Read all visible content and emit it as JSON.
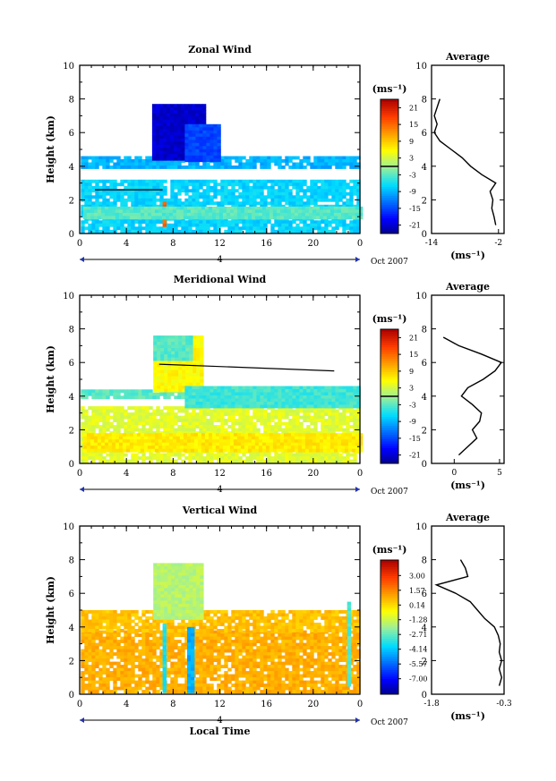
{
  "chart_data": [
    {
      "type": "heatmap",
      "title": "Zonal Wind",
      "ylabel": "Height (km)",
      "xlabel": "",
      "xlim": [
        0,
        24
      ],
      "ylim": [
        0,
        10
      ],
      "x_ticks": [
        "0",
        "4",
        "8",
        "12",
        "16",
        "20",
        "0"
      ],
      "y_ticks": [
        "0",
        "2",
        "4",
        "6",
        "8",
        "10"
      ],
      "date_label": "Oct 2007",
      "day_label": "4",
      "colorbar": {
        "unit": "(ms⁻¹)",
        "min": -24,
        "max": 24,
        "ticks": [
          "21",
          "15",
          "9",
          "3",
          "-3",
          "-9",
          "-15",
          "-21"
        ],
        "tick_values": [
          21,
          15,
          9,
          3,
          -3,
          -9,
          -15,
          -21
        ]
      },
      "regions": [
        {
          "t0": 0.1,
          "t1": 24,
          "h0": 0.1,
          "h1": 3.2,
          "value": -7
        },
        {
          "t0": 0.1,
          "t1": 24,
          "h0": 3.9,
          "h1": 4.6,
          "value": -9
        },
        {
          "t0": 6.2,
          "t1": 10.5,
          "h0": 4.5,
          "h1": 7.7,
          "value": -21
        },
        {
          "t0": 9.0,
          "t1": 12.0,
          "h0": 4.4,
          "h1": 6.5,
          "value": -15
        },
        {
          "t0": 7.1,
          "t1": 7.4,
          "h0": 0.5,
          "h1": 1.9,
          "value": 15
        },
        {
          "t0": 0.3,
          "t1": 24,
          "h0": 1.0,
          "h1": 1.6,
          "value": -3
        }
      ],
      "contour_lines": [
        {
          "t": [
            1.3,
            7.1
          ],
          "h": [
            2.6,
            2.6
          ]
        }
      ],
      "profile": {
        "title": "Average",
        "xlabel": "(ms⁻¹)",
        "x_ticks": [
          "-14",
          "-2"
        ],
        "xlim": [
          -14,
          -1
        ],
        "height": [
          0.5,
          1.0,
          1.5,
          2.0,
          2.5,
          3.0,
          3.5,
          4.0,
          4.5,
          5.0,
          5.5,
          6.0,
          6.5,
          7.0,
          7.5,
          8.0
        ],
        "value": [
          -2.5,
          -2.8,
          -3.2,
          -3.0,
          -3.5,
          -2.5,
          -5.0,
          -7.0,
          -8.5,
          -10.5,
          -12.5,
          -13.5,
          -13.0,
          -13.5,
          -13.0,
          -12.5
        ]
      }
    },
    {
      "type": "heatmap",
      "title": "Meridional Wind",
      "ylabel": "Height (km)",
      "xlabel": "",
      "xlim": [
        0,
        24
      ],
      "ylim": [
        0,
        10
      ],
      "x_ticks": [
        "0",
        "4",
        "8",
        "12",
        "16",
        "20",
        "0"
      ],
      "y_ticks": [
        "0",
        "2",
        "4",
        "6",
        "8",
        "10"
      ],
      "date_label": "Oct 2007",
      "day_label": "4",
      "colorbar": {
        "unit": "(ms⁻¹)",
        "min": -24,
        "max": 24,
        "ticks": [
          "21",
          "15",
          "9",
          "3",
          "-3",
          "-9",
          "-15",
          "-21"
        ],
        "tick_values": [
          21,
          15,
          9,
          3,
          -3,
          -9,
          -15,
          -21
        ]
      },
      "regions": [
        {
          "t0": 0.1,
          "t1": 24,
          "h0": 0.1,
          "h1": 3.4,
          "value": 4
        },
        {
          "t0": 0.1,
          "t1": 24,
          "h0": 3.9,
          "h1": 4.4,
          "value": -3
        },
        {
          "t0": 6.3,
          "t1": 10.5,
          "h0": 4.3,
          "h1": 7.6,
          "value": 6
        },
        {
          "t0": 6.3,
          "t1": 9.6,
          "h0": 6.2,
          "h1": 7.6,
          "value": -3
        },
        {
          "t0": 9.0,
          "t1": 24,
          "h0": 3.4,
          "h1": 4.6,
          "value": -4
        },
        {
          "t0": 0.3,
          "t1": 24,
          "h0": 0.8,
          "h1": 1.8,
          "value": 7
        }
      ],
      "contour_lines": [
        {
          "t": [
            6.8,
            21.8
          ],
          "h": [
            5.9,
            5.5
          ]
        }
      ],
      "profile": {
        "title": "Average",
        "xlabel": "(ms⁻¹)",
        "x_ticks": [
          "0",
          "5"
        ],
        "xlim": [
          -2.5,
          5.5
        ],
        "height": [
          0.5,
          1.0,
          1.5,
          2.0,
          2.5,
          3.0,
          3.5,
          4.0,
          4.5,
          5.0,
          5.5,
          6.0,
          6.5,
          7.0,
          7.5
        ],
        "value": [
          0.5,
          1.5,
          2.5,
          2.0,
          2.8,
          3.0,
          2.0,
          0.8,
          1.5,
          3.2,
          4.5,
          5.2,
          3.0,
          0.5,
          -1.2
        ]
      }
    },
    {
      "type": "heatmap",
      "title": "Vertical Wind",
      "ylabel": "Height (km)",
      "xlabel": "Local Time",
      "xlim": [
        0,
        24
      ],
      "ylim": [
        0,
        10
      ],
      "x_ticks": [
        "0",
        "4",
        "8",
        "12",
        "16",
        "20",
        "0"
      ],
      "y_ticks": [
        "0",
        "2",
        "4",
        "6",
        "8",
        "10"
      ],
      "date_label": "Oct 2007",
      "day_label": "4",
      "colorbar": {
        "unit": "(ms⁻¹)",
        "min": -8.5,
        "max": 4.5,
        "ticks": [
          "3.00",
          "1.57",
          "0.14",
          "-1.28",
          "-2.71",
          "-4.14",
          "-5.57",
          "-7.00"
        ],
        "tick_values": [
          3.0,
          1.57,
          0.14,
          -1.28,
          -2.71,
          -4.14,
          -5.57,
          -7.0
        ]
      },
      "regions": [
        {
          "t0": 0.1,
          "t1": 24,
          "h0": 0.1,
          "h1": 3.8,
          "value": 0.9
        },
        {
          "t0": 0.1,
          "t1": 24,
          "h0": 3.8,
          "h1": 5.0,
          "value": 0.6
        },
        {
          "t0": 6.3,
          "t1": 10.4,
          "h0": 4.6,
          "h1": 7.8,
          "value": -1.6
        },
        {
          "t0": 7.1,
          "t1": 7.35,
          "h0": 0.2,
          "h1": 4.2,
          "value": -3.5
        },
        {
          "t0": 9.2,
          "t1": 9.7,
          "h0": 0.2,
          "h1": 4.0,
          "value": -4.5
        },
        {
          "t0": 22.9,
          "t1": 23.2,
          "h0": 0.5,
          "h1": 5.5,
          "value": -2.8
        }
      ],
      "contour_lines": [],
      "profile": {
        "title": "Average",
        "xlabel": "(ms⁻¹)",
        "x_ticks": [
          "-1.8",
          "-0.3"
        ],
        "xlim": [
          -1.8,
          -0.3
        ],
        "height": [
          0.5,
          1.0,
          1.5,
          2.0,
          2.5,
          3.0,
          3.5,
          4.0,
          4.5,
          5.0,
          5.5,
          6.0,
          6.5,
          7.0,
          7.5,
          8.0
        ],
        "value": [
          -0.4,
          -0.35,
          -0.4,
          -0.35,
          -0.4,
          -0.38,
          -0.42,
          -0.5,
          -0.7,
          -0.85,
          -1.0,
          -1.3,
          -1.7,
          -1.05,
          -1.1,
          -1.2
        ]
      }
    }
  ]
}
